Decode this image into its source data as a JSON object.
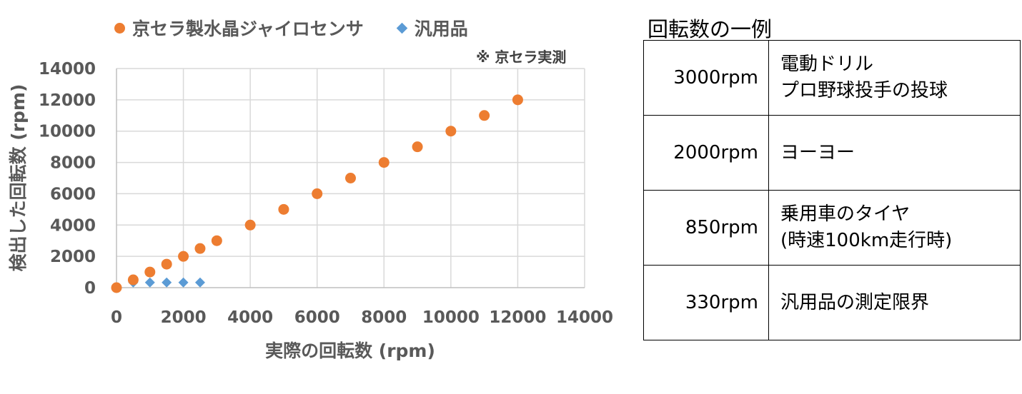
{
  "chart_data": {
    "type": "scatter",
    "title": "",
    "xlabel": "実際の回転数 (rpm)",
    "ylabel": "検出した回転数 (rpm)",
    "xlim": [
      0,
      14000
    ],
    "ylim": [
      0,
      14000
    ],
    "xticks": [
      0,
      2000,
      4000,
      6000,
      8000,
      10000,
      12000,
      14000
    ],
    "yticks": [
      0,
      2000,
      4000,
      6000,
      8000,
      10000,
      12000,
      14000
    ],
    "grid": true,
    "legend_position": "top",
    "annotation": "※ 京セラ実測",
    "series": [
      {
        "name": "京セラ製水晶ジャイロセンサ",
        "marker": "circle",
        "color": "#ED7D31",
        "x": [
          0,
          500,
          1000,
          1500,
          2000,
          2500,
          3000,
          4000,
          5000,
          6000,
          7000,
          8000,
          9000,
          10000,
          11000,
          12000
        ],
        "y": [
          0,
          500,
          1000,
          1500,
          2000,
          2500,
          3000,
          4000,
          5000,
          6000,
          7000,
          8000,
          9000,
          10000,
          11000,
          12000
        ]
      },
      {
        "name": "汎用品",
        "marker": "diamond",
        "color": "#5B9BD5",
        "x": [
          0,
          500,
          1000,
          1500,
          2000,
          2500
        ],
        "y": [
          0,
          330,
          330,
          330,
          330,
          330
        ]
      }
    ]
  },
  "table": {
    "title": "回転数の一例",
    "rows": [
      {
        "rpm": "3000rpm",
        "lines": [
          "電動ドリル",
          "プロ野球投手の投球"
        ]
      },
      {
        "rpm": "2000rpm",
        "lines": [
          "ヨーヨー"
        ]
      },
      {
        "rpm": "850rpm",
        "lines": [
          "乗用車のタイヤ",
          "(時速100km走行時)"
        ]
      },
      {
        "rpm": "330rpm",
        "lines": [
          "汎用品の測定限界"
        ]
      }
    ]
  }
}
